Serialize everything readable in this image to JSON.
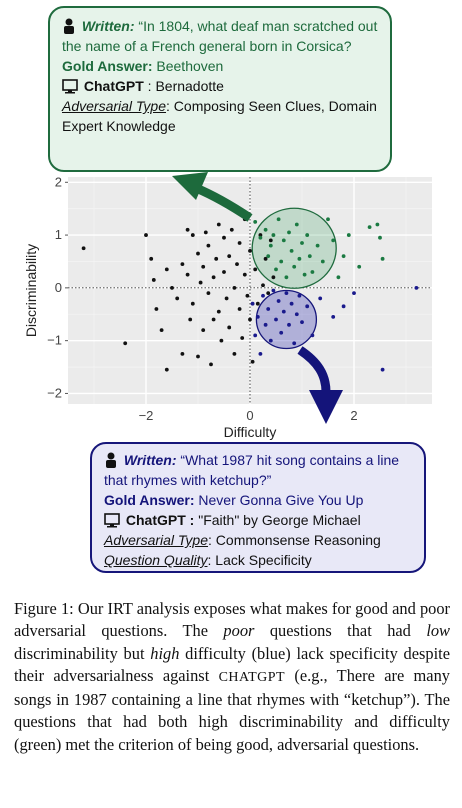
{
  "chart_data": {
    "type": "scatter",
    "xlabel": "Difficulty",
    "ylabel": "Discriminability",
    "xlim": [
      -3.5,
      3.5
    ],
    "ylim": [
      -2.2,
      2.1
    ],
    "xticks": [
      {
        "v": -2,
        "label": "−2"
      },
      {
        "v": 0,
        "label": "0"
      },
      {
        "v": 2,
        "label": "2"
      }
    ],
    "yticks": [
      {
        "v": 2,
        "label": "2"
      },
      {
        "v": 1,
        "label": "1"
      },
      {
        "v": 0,
        "label": "0"
      },
      {
        "v": -1,
        "label": "−1"
      },
      {
        "v": -2,
        "label": "−2"
      }
    ],
    "grid": true,
    "legend": "none",
    "series": [
      {
        "color": "#111111",
        "points": [
          [
            -3.2,
            0.75
          ],
          [
            -2.4,
            -1.05
          ],
          [
            -2.0,
            1.0
          ],
          [
            -1.9,
            0.55
          ],
          [
            -1.85,
            0.15
          ],
          [
            -1.8,
            -0.4
          ],
          [
            -1.7,
            -0.8
          ],
          [
            -1.6,
            -1.55
          ],
          [
            -1.6,
            0.35
          ],
          [
            -1.5,
            0.0
          ],
          [
            -1.4,
            -0.2
          ],
          [
            -1.3,
            0.45
          ],
          [
            -1.3,
            -1.25
          ],
          [
            -1.2,
            1.1
          ],
          [
            -1.2,
            0.25
          ],
          [
            -1.15,
            -0.6
          ],
          [
            -1.1,
            1.0
          ],
          [
            -1.1,
            -0.3
          ],
          [
            -1.0,
            0.65
          ],
          [
            -1.0,
            -1.3
          ],
          [
            -0.95,
            0.1
          ],
          [
            -0.9,
            -0.8
          ],
          [
            -0.9,
            0.4
          ],
          [
            -0.85,
            1.05
          ],
          [
            -0.8,
            -0.1
          ],
          [
            -0.8,
            0.8
          ],
          [
            -0.75,
            -1.45
          ],
          [
            -0.7,
            0.2
          ],
          [
            -0.7,
            -0.6
          ],
          [
            -0.65,
            0.55
          ],
          [
            -0.6,
            1.2
          ],
          [
            -0.6,
            -0.45
          ],
          [
            -0.55,
            -1.0
          ],
          [
            -0.5,
            0.3
          ],
          [
            -0.5,
            0.95
          ],
          [
            -0.45,
            -0.2
          ],
          [
            -0.4,
            0.6
          ],
          [
            -0.4,
            -0.75
          ],
          [
            -0.35,
            1.1
          ],
          [
            -0.3,
            0.0
          ],
          [
            -0.3,
            -1.25
          ],
          [
            -0.25,
            0.45
          ],
          [
            -0.2,
            -0.4
          ],
          [
            -0.2,
            0.85
          ],
          [
            -0.15,
            -0.95
          ],
          [
            -0.1,
            0.25
          ],
          [
            -0.1,
            1.3
          ],
          [
            -0.05,
            -0.15
          ],
          [
            0.0,
            0.7
          ],
          [
            0.0,
            -0.6
          ],
          [
            0.05,
            -1.4
          ],
          [
            0.1,
            0.35
          ],
          [
            0.15,
            -0.3
          ],
          [
            0.2,
            1.0
          ],
          [
            0.25,
            0.05
          ],
          [
            0.3,
            0.55
          ],
          [
            0.35,
            -0.1
          ],
          [
            0.4,
            0.9
          ],
          [
            0.45,
            0.2
          ]
        ]
      },
      {
        "color": "#1b7a42",
        "points": [
          [
            0.1,
            1.25
          ],
          [
            0.2,
            0.95
          ],
          [
            0.3,
            1.1
          ],
          [
            0.35,
            0.6
          ],
          [
            0.4,
            0.8
          ],
          [
            0.45,
            1.0
          ],
          [
            0.5,
            0.35
          ],
          [
            0.55,
            1.3
          ],
          [
            0.6,
            0.5
          ],
          [
            0.65,
            0.9
          ],
          [
            0.7,
            0.2
          ],
          [
            0.75,
            1.05
          ],
          [
            0.8,
            0.7
          ],
          [
            0.85,
            0.4
          ],
          [
            0.9,
            1.2
          ],
          [
            0.95,
            0.55
          ],
          [
            1.0,
            0.85
          ],
          [
            1.05,
            0.25
          ],
          [
            1.1,
            1.0
          ],
          [
            1.15,
            0.6
          ],
          [
            1.2,
            0.3
          ],
          [
            1.3,
            0.8
          ],
          [
            1.4,
            0.5
          ],
          [
            1.5,
            1.3
          ],
          [
            1.6,
            0.9
          ],
          [
            1.7,
            0.2
          ],
          [
            1.8,
            0.6
          ],
          [
            1.9,
            1.0
          ],
          [
            2.1,
            0.4
          ],
          [
            2.3,
            1.15
          ],
          [
            2.45,
            1.2
          ],
          [
            2.55,
            0.55
          ],
          [
            2.5,
            0.95
          ]
        ]
      },
      {
        "color": "#1a1a8c",
        "points": [
          [
            0.05,
            -0.3
          ],
          [
            0.1,
            -0.9
          ],
          [
            0.15,
            -0.55
          ],
          [
            0.2,
            -1.25
          ],
          [
            0.25,
            -0.15
          ],
          [
            0.3,
            -0.7
          ],
          [
            0.35,
            -0.4
          ],
          [
            0.4,
            -1.0
          ],
          [
            0.45,
            -0.05
          ],
          [
            0.5,
            -0.6
          ],
          [
            0.55,
            -0.25
          ],
          [
            0.6,
            -0.85
          ],
          [
            0.65,
            -0.45
          ],
          [
            0.7,
            -0.1
          ],
          [
            0.75,
            -0.7
          ],
          [
            0.8,
            -0.3
          ],
          [
            0.85,
            -1.05
          ],
          [
            0.9,
            -0.5
          ],
          [
            0.95,
            -0.15
          ],
          [
            1.0,
            -0.65
          ],
          [
            1.1,
            -0.35
          ],
          [
            1.2,
            -0.9
          ],
          [
            1.35,
            -0.2
          ],
          [
            1.6,
            -0.55
          ],
          [
            1.8,
            -0.35
          ],
          [
            2.0,
            -0.1
          ],
          [
            2.55,
            -1.55
          ],
          [
            3.2,
            0.0
          ]
        ]
      }
    ]
  },
  "callout_green": {
    "label": "Written:",
    "question": " “In 1804, what deaf man scratched out the name of a French general born in Corsica?",
    "gold_label": "Gold Answer:",
    "gold_value": " Beethoven",
    "model_label": "ChatGPT",
    "model_value": " : Bernadotte",
    "adv_label": "Adversarial Type",
    "adv_value": ": Composing Seen Clues, Domain Expert Knowledge"
  },
  "callout_blue": {
    "label": "Written:",
    "question": " “What 1987 hit song contains a line that rhymes with ketchup?”",
    "gold_label": "Gold Answer:",
    "gold_value": " Never Gonna Give You Up",
    "model_label": "ChatGPT :",
    "model_value": " \"Faith\" by George Michael",
    "adv_label": "Adversarial Type",
    "adv_value": ": Commonsense Reasoning",
    "qq_label": "Question Quality",
    "qq_value": ": Lack Specificity"
  },
  "caption": {
    "p1": "Figure 1: Our IRT analysis exposes what makes for good and poor adversarial questions. The ",
    "poor": "poor",
    "p2": " questions that had ",
    "low": "low",
    "p3": " discriminability but ",
    "high": "high",
    "p4": " difficulty (blue) lack specificity despite their adversarialness against ",
    "chatgpt": "CHATGPT",
    "p5": " (e.g., There are many songs in 1987 containing a line that rhymes with “ketchup”). The questions that had both high discriminability and difficulty (green) met the criterion of being good, adversarial questions."
  },
  "colors": {
    "green_accent": "#1d6a3c",
    "blue_accent": "#14147a",
    "panel_bg": "#ebebeb"
  }
}
